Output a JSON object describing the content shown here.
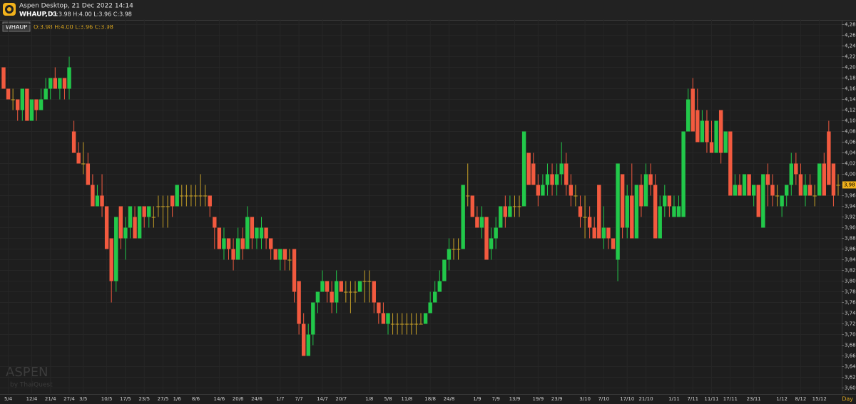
{
  "header": {
    "app_title": "Aspen Desktop, 21 Dec 2022 14:14",
    "symbol": "WHAUP,D1",
    "quote": "O:3.98 H:4.00 L:3.96 C:3.98"
  },
  "chart_data": {
    "type": "candlestick",
    "symbol_tag": "WHAUP",
    "quote": "O:3.98 H:4.00 L:3.96 C:3.98",
    "watermark": "ASPEN",
    "watermark_sub": "by ThaiQuest",
    "x_unit": "Day",
    "last_label": "3,98",
    "last_value": 3.98,
    "up_color": "#22c84a",
    "down_color": "#f25a3f",
    "flat_color": "#c9a227",
    "grid": true,
    "ylim": [
      3.59,
      4.29
    ],
    "yticks": [
      {
        "value": 3.6,
        "label": "3,60"
      },
      {
        "value": 3.62,
        "label": "3,62"
      },
      {
        "value": 3.64,
        "label": "3,64"
      },
      {
        "value": 3.66,
        "label": "3,66"
      },
      {
        "value": 3.68,
        "label": "3,68"
      },
      {
        "value": 3.7,
        "label": "3,70"
      },
      {
        "value": 3.72,
        "label": "3,72"
      },
      {
        "value": 3.74,
        "label": "3,74"
      },
      {
        "value": 3.76,
        "label": "3,76"
      },
      {
        "value": 3.78,
        "label": "3,78"
      },
      {
        "value": 3.8,
        "label": "3,80"
      },
      {
        "value": 3.82,
        "label": "3,82"
      },
      {
        "value": 3.84,
        "label": "3,84"
      },
      {
        "value": 3.86,
        "label": "3,86"
      },
      {
        "value": 3.88,
        "label": "3,88"
      },
      {
        "value": 3.9,
        "label": "3,90"
      },
      {
        "value": 3.92,
        "label": "3,92"
      },
      {
        "value": 3.94,
        "label": "3,94"
      },
      {
        "value": 3.96,
        "label": "3,96"
      },
      {
        "value": 3.98,
        "label": "3,98"
      },
      {
        "value": 4.0,
        "label": "4,00"
      },
      {
        "value": 4.02,
        "label": "4,02"
      },
      {
        "value": 4.04,
        "label": "4,04"
      },
      {
        "value": 4.06,
        "label": "4,06"
      },
      {
        "value": 4.08,
        "label": "4,08"
      },
      {
        "value": 4.1,
        "label": "4,10"
      },
      {
        "value": 4.12,
        "label": "4,12"
      },
      {
        "value": 4.14,
        "label": "4,14"
      },
      {
        "value": 4.16,
        "label": "4,16"
      },
      {
        "value": 4.18,
        "label": "4,18"
      },
      {
        "value": 4.2,
        "label": "4,20"
      },
      {
        "value": 4.22,
        "label": "4,22"
      },
      {
        "value": 4.24,
        "label": "4,24"
      },
      {
        "value": 4.26,
        "label": "4,26"
      },
      {
        "value": 4.28,
        "label": "4,28"
      }
    ],
    "categories": [
      null,
      "5/4",
      null,
      null,
      null,
      null,
      "12/4",
      null,
      null,
      null,
      "21/4",
      null,
      null,
      null,
      "27/4",
      null,
      null,
      "3/5",
      null,
      null,
      null,
      null,
      "10/5",
      null,
      null,
      null,
      "17/5",
      null,
      null,
      null,
      "23/5",
      null,
      null,
      null,
      "27/5",
      null,
      null,
      "1/6",
      null,
      null,
      null,
      "8/6",
      null,
      null,
      null,
      null,
      "14/6",
      null,
      null,
      null,
      "20/6",
      null,
      null,
      null,
      "24/6",
      null,
      null,
      null,
      null,
      "1/7",
      null,
      null,
      null,
      "7/7",
      null,
      null,
      null,
      null,
      "14/7",
      null,
      null,
      null,
      "20/7",
      null,
      null,
      null,
      null,
      null,
      "1/8",
      null,
      null,
      null,
      "5/8",
      null,
      null,
      null,
      "11/8",
      null,
      null,
      null,
      null,
      "18/8",
      null,
      null,
      null,
      "24/8",
      null,
      null,
      null,
      null,
      null,
      "1/9",
      null,
      null,
      null,
      "7/9",
      null,
      null,
      null,
      "13/9",
      null,
      null,
      null,
      null,
      "19/9",
      null,
      null,
      null,
      "23/9",
      null,
      null,
      null,
      null,
      null,
      "3/10",
      null,
      null,
      null,
      "7/10",
      null,
      null,
      null,
      null,
      "17/10",
      null,
      null,
      null,
      "21/10",
      null,
      null,
      null,
      null,
      null,
      "1/11",
      null,
      null,
      null,
      "7/11",
      null,
      null,
      null,
      "11/11",
      null,
      null,
      null,
      "17/11",
      null,
      null,
      null,
      null,
      "23/11",
      null,
      null,
      null,
      null,
      null,
      "1/12",
      null,
      null,
      null,
      "8/12",
      null,
      null,
      null,
      "15/12",
      null,
      null,
      null,
      null
    ],
    "ohlc": [
      [
        4.2,
        4.2,
        4.16,
        4.16
      ],
      [
        4.16,
        4.16,
        4.14,
        4.14
      ],
      [
        4.14,
        4.16,
        4.12,
        4.14
      ],
      [
        4.14,
        4.14,
        4.1,
        4.12
      ],
      [
        4.12,
        4.16,
        4.1,
        4.16
      ],
      [
        4.16,
        4.16,
        4.1,
        4.1
      ],
      [
        4.1,
        4.14,
        4.1,
        4.14
      ],
      [
        4.14,
        4.14,
        4.1,
        4.12
      ],
      [
        4.12,
        4.16,
        4.12,
        4.14
      ],
      [
        4.14,
        4.18,
        4.14,
        4.16
      ],
      [
        4.16,
        4.18,
        4.14,
        4.18
      ],
      [
        4.18,
        4.2,
        4.16,
        4.16
      ],
      [
        4.16,
        4.18,
        4.14,
        4.18
      ],
      [
        4.18,
        4.18,
        4.14,
        4.16
      ],
      [
        4.16,
        4.22,
        4.14,
        4.2
      ],
      [
        4.08,
        4.1,
        4.04,
        4.04
      ],
      [
        4.04,
        4.06,
        4.02,
        4.02
      ],
      [
        4.02,
        4.06,
        4.0,
        4.02
      ],
      [
        4.02,
        4.04,
        3.98,
        3.98
      ],
      [
        3.98,
        4.0,
        3.94,
        3.94
      ],
      [
        3.94,
        3.98,
        3.94,
        3.96
      ],
      [
        3.96,
        4.0,
        3.92,
        3.94
      ],
      [
        3.94,
        3.94,
        3.86,
        3.86
      ],
      [
        3.88,
        3.88,
        3.76,
        3.8
      ],
      [
        3.8,
        3.92,
        3.78,
        3.92
      ],
      [
        3.94,
        3.94,
        3.86,
        3.88
      ],
      [
        3.88,
        3.92,
        3.84,
        3.9
      ],
      [
        3.9,
        3.94,
        3.88,
        3.94
      ],
      [
        3.92,
        3.94,
        3.88,
        3.88
      ],
      [
        3.88,
        3.94,
        3.88,
        3.94
      ],
      [
        3.94,
        3.94,
        3.9,
        3.92
      ],
      [
        3.92,
        3.94,
        3.9,
        3.94
      ],
      [
        3.92,
        3.94,
        3.9,
        3.92
      ],
      [
        3.94,
        3.96,
        3.92,
        3.94
      ],
      [
        3.94,
        3.96,
        3.9,
        3.94
      ],
      [
        3.94,
        3.96,
        3.9,
        3.94
      ],
      [
        3.96,
        3.96,
        3.92,
        3.94
      ],
      [
        3.94,
        3.98,
        3.94,
        3.98
      ],
      [
        3.96,
        3.98,
        3.94,
        3.96
      ],
      [
        3.96,
        3.98,
        3.94,
        3.96
      ],
      [
        3.96,
        3.98,
        3.94,
        3.96
      ],
      [
        3.96,
        3.98,
        3.94,
        3.96
      ],
      [
        3.96,
        4.0,
        3.94,
        3.96
      ],
      [
        3.96,
        3.98,
        3.94,
        3.96
      ],
      [
        3.96,
        3.96,
        3.92,
        3.94
      ],
      [
        3.92,
        3.92,
        3.86,
        3.9
      ],
      [
        3.9,
        3.9,
        3.86,
        3.86
      ],
      [
        3.86,
        3.9,
        3.84,
        3.88
      ],
      [
        3.88,
        3.88,
        3.84,
        3.86
      ],
      [
        3.86,
        3.88,
        3.82,
        3.84
      ],
      [
        3.84,
        3.9,
        3.84,
        3.88
      ],
      [
        3.88,
        3.9,
        3.84,
        3.86
      ],
      [
        3.86,
        3.94,
        3.86,
        3.92
      ],
      [
        3.92,
        3.92,
        3.86,
        3.88
      ],
      [
        3.88,
        3.9,
        3.86,
        3.9
      ],
      [
        3.88,
        3.92,
        3.86,
        3.9
      ],
      [
        3.9,
        3.9,
        3.86,
        3.88
      ],
      [
        3.88,
        3.88,
        3.84,
        3.86
      ],
      [
        3.86,
        3.86,
        3.84,
        3.84
      ],
      [
        3.84,
        3.86,
        3.82,
        3.86
      ],
      [
        3.86,
        3.86,
        3.82,
        3.84
      ],
      [
        3.84,
        3.86,
        3.82,
        3.84
      ],
      [
        3.86,
        3.86,
        3.76,
        3.78
      ],
      [
        3.8,
        3.8,
        3.7,
        3.72
      ],
      [
        3.72,
        3.74,
        3.66,
        3.66
      ],
      [
        3.66,
        3.72,
        3.66,
        3.7
      ],
      [
        3.7,
        3.76,
        3.68,
        3.76
      ],
      [
        3.76,
        3.78,
        3.74,
        3.78
      ],
      [
        3.78,
        3.82,
        3.78,
        3.8
      ],
      [
        3.8,
        3.8,
        3.76,
        3.78
      ],
      [
        3.78,
        3.8,
        3.74,
        3.76
      ],
      [
        3.76,
        3.82,
        3.74,
        3.8
      ],
      [
        3.8,
        3.8,
        3.78,
        3.78
      ],
      [
        3.78,
        3.8,
        3.76,
        3.78
      ],
      [
        3.78,
        3.8,
        3.74,
        3.78
      ],
      [
        3.78,
        3.8,
        3.76,
        3.78
      ],
      [
        3.78,
        3.8,
        3.78,
        3.8
      ],
      [
        3.8,
        3.82,
        3.76,
        3.8
      ],
      [
        3.8,
        3.82,
        3.76,
        3.8
      ],
      [
        3.8,
        3.8,
        3.74,
        3.76
      ],
      [
        3.76,
        3.76,
        3.72,
        3.74
      ],
      [
        3.74,
        3.76,
        3.72,
        3.72
      ],
      [
        3.72,
        3.74,
        3.7,
        3.74
      ],
      [
        3.72,
        3.74,
        3.7,
        3.72
      ],
      [
        3.72,
        3.74,
        3.7,
        3.72
      ],
      [
        3.72,
        3.74,
        3.7,
        3.72
      ],
      [
        3.72,
        3.74,
        3.7,
        3.72
      ],
      [
        3.72,
        3.74,
        3.7,
        3.72
      ],
      [
        3.72,
        3.74,
        3.7,
        3.72
      ],
      [
        3.72,
        3.74,
        3.72,
        3.72
      ],
      [
        3.72,
        3.74,
        3.72,
        3.74
      ],
      [
        3.74,
        3.78,
        3.74,
        3.76
      ],
      [
        3.76,
        3.8,
        3.76,
        3.78
      ],
      [
        3.78,
        3.82,
        3.78,
        3.8
      ],
      [
        3.8,
        3.84,
        3.8,
        3.84
      ],
      [
        3.84,
        3.88,
        3.82,
        3.86
      ],
      [
        3.86,
        3.88,
        3.84,
        3.86
      ],
      [
        3.86,
        3.88,
        3.84,
        3.86
      ],
      [
        3.86,
        3.98,
        3.86,
        3.98
      ],
      [
        3.96,
        4.02,
        3.94,
        3.96
      ],
      [
        3.96,
        3.96,
        3.92,
        3.92
      ],
      [
        3.92,
        3.94,
        3.9,
        3.9
      ],
      [
        3.9,
        3.94,
        3.88,
        3.92
      ],
      [
        3.92,
        3.92,
        3.84,
        3.84
      ],
      [
        3.86,
        3.9,
        3.84,
        3.88
      ],
      [
        3.88,
        3.92,
        3.86,
        3.9
      ],
      [
        3.9,
        3.94,
        3.9,
        3.94
      ],
      [
        3.94,
        3.96,
        3.9,
        3.92
      ],
      [
        3.92,
        3.96,
        3.92,
        3.94
      ],
      [
        3.94,
        3.96,
        3.92,
        3.94
      ],
      [
        3.94,
        3.96,
        3.92,
        3.94
      ],
      [
        3.94,
        4.08,
        3.94,
        4.08
      ],
      [
        4.04,
        4.04,
        3.98,
        3.98
      ],
      [
        4.02,
        4.04,
        3.98,
        3.98
      ],
      [
        3.98,
        4.0,
        3.94,
        3.96
      ],
      [
        3.96,
        4.0,
        3.96,
        3.98
      ],
      [
        3.98,
        4.02,
        3.96,
        4.0
      ],
      [
        4.0,
        4.02,
        3.96,
        3.98
      ],
      [
        3.98,
        4.02,
        3.96,
        4.0
      ],
      [
        4.0,
        4.06,
        3.98,
        4.02
      ],
      [
        4.02,
        4.04,
        3.96,
        3.98
      ],
      [
        3.98,
        4.0,
        3.94,
        3.96
      ],
      [
        3.96,
        3.98,
        3.94,
        3.96
      ],
      [
        3.94,
        3.96,
        3.9,
        3.92
      ],
      [
        3.92,
        3.96,
        3.88,
        3.92
      ],
      [
        3.92,
        3.94,
        3.88,
        3.9
      ],
      [
        3.9,
        3.92,
        3.88,
        3.88
      ],
      [
        3.98,
        3.98,
        3.88,
        3.88
      ],
      [
        3.88,
        3.94,
        3.86,
        3.9
      ],
      [
        3.9,
        3.9,
        3.86,
        3.88
      ],
      [
        3.88,
        3.88,
        3.86,
        3.86
      ],
      [
        3.84,
        4.02,
        3.8,
        4.02
      ],
      [
        4.0,
        4.0,
        3.88,
        3.9
      ],
      [
        3.9,
        3.98,
        3.88,
        3.96
      ],
      [
        3.96,
        4.02,
        3.88,
        3.88
      ],
      [
        3.88,
        3.98,
        3.88,
        3.98
      ],
      [
        3.98,
        4.0,
        3.92,
        3.94
      ],
      [
        3.94,
        4.02,
        3.94,
        4.0
      ],
      [
        4.0,
        4.02,
        3.96,
        3.98
      ],
      [
        3.98,
        4.0,
        3.88,
        3.88
      ],
      [
        3.88,
        3.96,
        3.88,
        3.94
      ],
      [
        3.94,
        3.98,
        3.92,
        3.96
      ],
      [
        3.96,
        3.96,
        3.92,
        3.94
      ],
      [
        3.92,
        3.96,
        3.92,
        3.94
      ],
      [
        3.92,
        3.96,
        3.92,
        3.94
      ],
      [
        3.92,
        4.08,
        3.92,
        4.08
      ],
      [
        4.08,
        4.16,
        4.08,
        4.14
      ],
      [
        4.16,
        4.18,
        4.08,
        4.08
      ],
      [
        4.12,
        4.16,
        4.06,
        4.06
      ],
      [
        4.06,
        4.12,
        4.06,
        4.1
      ],
      [
        4.1,
        4.12,
        4.04,
        4.06
      ],
      [
        4.06,
        4.1,
        4.04,
        4.04
      ],
      [
        4.04,
        4.1,
        4.04,
        4.1
      ],
      [
        4.12,
        4.12,
        4.02,
        4.04
      ],
      [
        4.04,
        4.08,
        4.04,
        4.08
      ],
      [
        4.08,
        4.08,
        3.96,
        3.96
      ],
      [
        3.96,
        4.0,
        3.96,
        3.98
      ],
      [
        3.98,
        4.0,
        3.96,
        3.96
      ],
      [
        3.96,
        4.0,
        3.96,
        4.0
      ],
      [
        4.0,
        4.0,
        3.96,
        3.96
      ],
      [
        3.96,
        3.98,
        3.94,
        3.98
      ],
      [
        3.98,
        3.98,
        3.92,
        3.92
      ],
      [
        3.9,
        4.0,
        3.9,
        4.0
      ],
      [
        4.0,
        4.02,
        3.94,
        3.98
      ],
      [
        3.98,
        4.0,
        3.94,
        3.96
      ],
      [
        3.96,
        3.98,
        3.94,
        3.96
      ],
      [
        3.94,
        3.96,
        3.92,
        3.96
      ],
      [
        3.96,
        3.98,
        3.94,
        3.98
      ],
      [
        3.98,
        4.04,
        3.96,
        4.02
      ],
      [
        4.02,
        4.04,
        3.98,
        4.0
      ],
      [
        4.0,
        4.02,
        3.96,
        3.96
      ],
      [
        3.96,
        4.0,
        3.94,
        3.98
      ],
      [
        3.98,
        4.0,
        3.96,
        3.96
      ],
      [
        3.96,
        3.98,
        3.94,
        3.96
      ],
      [
        3.96,
        4.02,
        3.96,
        4.02
      ],
      [
        4.02,
        4.04,
        3.96,
        3.96
      ],
      [
        4.08,
        4.1,
        3.98,
        3.98
      ],
      [
        4.02,
        4.02,
        3.94,
        3.96
      ],
      [
        3.98,
        4.0,
        3.96,
        3.98
      ]
    ]
  }
}
